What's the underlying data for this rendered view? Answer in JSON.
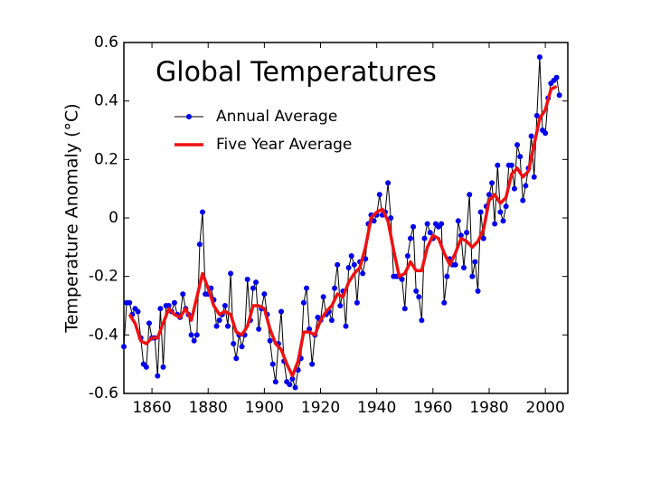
{
  "chart_data": {
    "type": "line",
    "title": "Global Temperatures",
    "y_label": "Temperature Anomaly (°C)",
    "x": [
      1850,
      1851,
      1852,
      1853,
      1854,
      1855,
      1856,
      1857,
      1858,
      1859,
      1860,
      1861,
      1862,
      1863,
      1864,
      1865,
      1866,
      1867,
      1868,
      1869,
      1870,
      1871,
      1872,
      1873,
      1874,
      1875,
      1876,
      1877,
      1878,
      1879,
      1880,
      1881,
      1882,
      1883,
      1884,
      1885,
      1886,
      1887,
      1888,
      1889,
      1890,
      1891,
      1892,
      1893,
      1894,
      1895,
      1896,
      1897,
      1898,
      1899,
      1900,
      1901,
      1902,
      1903,
      1904,
      1905,
      1906,
      1907,
      1908,
      1909,
      1910,
      1911,
      1912,
      1913,
      1914,
      1915,
      1916,
      1917,
      1918,
      1919,
      1920,
      1921,
      1922,
      1923,
      1924,
      1925,
      1926,
      1927,
      1928,
      1929,
      1930,
      1931,
      1932,
      1933,
      1934,
      1935,
      1936,
      1937,
      1938,
      1939,
      1940,
      1941,
      1942,
      1943,
      1944,
      1945,
      1946,
      1947,
      1948,
      1949,
      1950,
      1951,
      1952,
      1953,
      1954,
      1955,
      1956,
      1957,
      1958,
      1959,
      1960,
      1961,
      1962,
      1963,
      1964,
      1965,
      1966,
      1967,
      1968,
      1969,
      1970,
      1971,
      1972,
      1973,
      1974,
      1975,
      1976,
      1977,
      1978,
      1979,
      1980,
      1981,
      1982,
      1983,
      1984,
      1985,
      1986,
      1987,
      1988,
      1989,
      1990,
      1991,
      1992,
      1993,
      1994,
      1995,
      1996,
      1997,
      1998,
      1999,
      2000,
      2001,
      2002,
      2003,
      2004,
      2005
    ],
    "series": [
      {
        "name": "Annual Average",
        "color": "#0000ee",
        "values": [
          -0.44,
          -0.29,
          -0.29,
          -0.33,
          -0.31,
          -0.32,
          -0.41,
          -0.5,
          -0.51,
          -0.36,
          -0.41,
          -0.41,
          -0.54,
          -0.31,
          -0.51,
          -0.3,
          -0.3,
          -0.32,
          -0.29,
          -0.33,
          -0.34,
          -0.26,
          -0.31,
          -0.33,
          -0.4,
          -0.42,
          -0.4,
          -0.09,
          0.02,
          -0.26,
          -0.26,
          -0.24,
          -0.28,
          -0.37,
          -0.35,
          -0.33,
          -0.3,
          -0.37,
          -0.19,
          -0.43,
          -0.48,
          -0.4,
          -0.44,
          -0.4,
          -0.21,
          -0.35,
          -0.24,
          -0.22,
          -0.38,
          -0.31,
          -0.26,
          -0.33,
          -0.42,
          -0.5,
          -0.56,
          -0.43,
          -0.32,
          -0.49,
          -0.56,
          -0.57,
          -0.55,
          -0.58,
          -0.52,
          -0.48,
          -0.29,
          -0.24,
          -0.38,
          -0.5,
          -0.4,
          -0.34,
          -0.35,
          -0.27,
          -0.33,
          -0.32,
          -0.35,
          -0.24,
          -0.16,
          -0.3,
          -0.25,
          -0.37,
          -0.17,
          -0.13,
          -0.16,
          -0.29,
          -0.15,
          -0.19,
          -0.14,
          -0.02,
          0.01,
          -0.01,
          0.01,
          0.08,
          0.01,
          0.02,
          0.12,
          0,
          -0.2,
          -0.2,
          -0.2,
          -0.21,
          -0.31,
          -0.13,
          -0.07,
          -0.03,
          -0.25,
          -0.27,
          -0.35,
          -0.07,
          -0.02,
          -0.05,
          -0.07,
          -0.02,
          -0.03,
          -0.02,
          -0.29,
          -0.2,
          -0.14,
          -0.16,
          -0.16,
          -0.01,
          -0.06,
          -0.17,
          -0.05,
          0.08,
          -0.2,
          -0.15,
          -0.25,
          0.02,
          -0.07,
          0.04,
          0.08,
          0.12,
          -0.02,
          0.18,
          0.02,
          -0.01,
          0.04,
          0.18,
          0.18,
          0.1,
          0.25,
          0.21,
          0.06,
          0.11,
          0.17,
          0.28,
          0.14,
          0.35,
          0.55,
          0.3,
          0.29,
          0.41,
          0.46,
          0.47,
          0.48,
          0.42
        ]
      },
      {
        "name": "Five Year Average",
        "color": "#ee1111",
        "x": [
          1852,
          1854,
          1856,
          1858,
          1860,
          1862,
          1864,
          1866,
          1868,
          1870,
          1872,
          1874,
          1876,
          1878,
          1880,
          1882,
          1884,
          1886,
          1888,
          1890,
          1892,
          1894,
          1896,
          1898,
          1900,
          1902,
          1904,
          1906,
          1908,
          1910,
          1912,
          1914,
          1916,
          1918,
          1920,
          1922,
          1924,
          1926,
          1928,
          1930,
          1932,
          1934,
          1936,
          1938,
          1940,
          1942,
          1944,
          1946,
          1948,
          1950,
          1952,
          1954,
          1956,
          1958,
          1960,
          1962,
          1964,
          1966,
          1968,
          1970,
          1972,
          1974,
          1976,
          1978,
          1980,
          1982,
          1984,
          1986,
          1988,
          1990,
          1992,
          1994,
          1996,
          1998,
          2000,
          2002,
          2004
        ],
        "values": [
          -0.33,
          -0.36,
          -0.42,
          -0.43,
          -0.41,
          -0.41,
          -0.36,
          -0.31,
          -0.33,
          -0.34,
          -0.31,
          -0.35,
          -0.27,
          -0.19,
          -0.24,
          -0.3,
          -0.33,
          -0.32,
          -0.33,
          -0.39,
          -0.4,
          -0.37,
          -0.3,
          -0.3,
          -0.31,
          -0.38,
          -0.43,
          -0.45,
          -0.5,
          -0.54,
          -0.49,
          -0.39,
          -0.39,
          -0.4,
          -0.35,
          -0.32,
          -0.3,
          -0.26,
          -0.27,
          -0.22,
          -0.19,
          -0.17,
          -0.1,
          0,
          0.02,
          0.03,
          -0.01,
          -0.11,
          -0.2,
          -0.19,
          -0.15,
          -0.18,
          -0.18,
          -0.1,
          -0.06,
          -0.07,
          -0.12,
          -0.16,
          -0.12,
          -0.07,
          -0.08,
          -0.1,
          -0.08,
          -0.04,
          0.06,
          0.08,
          0.05,
          0.07,
          0.15,
          0.17,
          0.14,
          0.16,
          0.25,
          0.34,
          0.37,
          0.44,
          0.45
        ]
      }
    ],
    "xlim": [
      1850,
      2008
    ],
    "xticks": [
      1860,
      1880,
      1900,
      1920,
      1940,
      1960,
      1980,
      2000
    ],
    "ylim": [
      -0.6,
      0.6
    ],
    "yticks": [
      -0.6,
      -0.4,
      -0.2,
      0,
      0.2,
      0.4,
      0.6
    ]
  }
}
